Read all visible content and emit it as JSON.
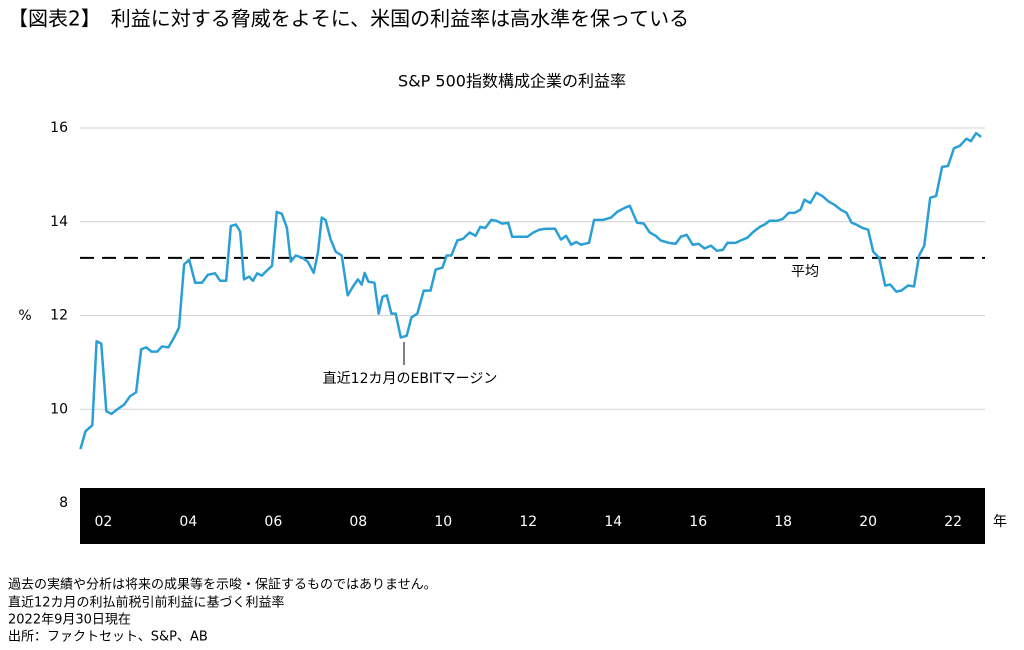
{
  "header": {
    "title": "【図表2】　利益に対する脅威をよそに、米国の利益率は高水準を保っている"
  },
  "chart_data": {
    "type": "line",
    "title": "S&P 500指数構成企業の利益率",
    "ylabel": "%",
    "xlabel": "年",
    "xlim": [
      2001.45,
      2022.75
    ],
    "xticks": [
      {
        "value": 2002,
        "label": "02"
      },
      {
        "value": 2004,
        "label": "04"
      },
      {
        "value": 2006,
        "label": "06"
      },
      {
        "value": 2008,
        "label": "08"
      },
      {
        "value": 2010,
        "label": "10"
      },
      {
        "value": 2012,
        "label": "12"
      },
      {
        "value": 2014,
        "label": "14"
      },
      {
        "value": 2016,
        "label": "16"
      },
      {
        "value": 2018,
        "label": "18"
      },
      {
        "value": 2020,
        "label": "20"
      },
      {
        "value": 2022,
        "label": "22"
      }
    ],
    "ylim": [
      8,
      16
    ],
    "yticks": [
      8,
      10,
      12,
      14,
      16
    ],
    "grid": true,
    "reference_line": {
      "value": 13.23,
      "label": "平均"
    },
    "x": [
      2001.46,
      2001.58,
      2001.74,
      2001.84,
      2001.95,
      2002.07,
      2002.19,
      2002.33,
      2002.49,
      2002.63,
      2002.77,
      2002.89,
      2003.01,
      2003.13,
      2003.27,
      2003.38,
      2003.53,
      2003.64,
      2003.78,
      2003.9,
      2004.02,
      2004.16,
      2004.32,
      2004.46,
      2004.63,
      2004.75,
      2004.89,
      2005.0,
      2005.12,
      2005.22,
      2005.31,
      2005.43,
      2005.52,
      2005.62,
      2005.73,
      2005.85,
      2005.97,
      2006.08,
      2006.2,
      2006.32,
      2006.41,
      2006.53,
      2006.69,
      2006.81,
      2006.95,
      2007.05,
      2007.14,
      2007.23,
      2007.35,
      2007.47,
      2007.61,
      2007.75,
      2007.89,
      2007.99,
      2008.08,
      2008.15,
      2008.24,
      2008.38,
      2008.48,
      2008.57,
      2008.67,
      2008.78,
      2008.88,
      2009.0,
      2009.14,
      2009.25,
      2009.39,
      2009.54,
      2009.7,
      2009.82,
      2009.98,
      2010.08,
      2010.19,
      2010.33,
      2010.47,
      2010.62,
      2010.76,
      2010.87,
      2010.99,
      2011.13,
      2011.25,
      2011.39,
      2011.53,
      2011.62,
      2011.79,
      2011.98,
      2012.12,
      2012.26,
      2012.42,
      2012.63,
      2012.77,
      2012.89,
      2013.01,
      2013.13,
      2013.24,
      2013.43,
      2013.55,
      2013.76,
      2013.95,
      2014.09,
      2014.28,
      2014.39,
      2014.56,
      2014.72,
      2014.86,
      2015.0,
      2015.12,
      2015.31,
      2015.47,
      2015.59,
      2015.73,
      2015.87,
      2016.01,
      2016.15,
      2016.3,
      2016.44,
      2016.58,
      2016.69,
      2016.88,
      2017.0,
      2017.16,
      2017.28,
      2017.45,
      2017.56,
      2017.68,
      2017.85,
      2017.99,
      2018.13,
      2018.27,
      2018.41,
      2018.5,
      2018.64,
      2018.78,
      2018.92,
      2019.07,
      2019.21,
      2019.35,
      2019.49,
      2019.61,
      2019.72,
      2019.86,
      2020.0,
      2020.12,
      2020.26,
      2020.4,
      2020.52,
      2020.66,
      2020.78,
      2020.94,
      2021.08,
      2021.2,
      2021.32,
      2021.46,
      2021.6,
      2021.74,
      2021.88,
      2022.02,
      2022.16,
      2022.31,
      2022.42,
      2022.54,
      2022.66
    ],
    "series": [
      {
        "name": "直近12カ月のEBITマージン",
        "color": "#2a9fd6",
        "values": [
          9.15,
          9.53,
          9.66,
          11.45,
          11.4,
          9.96,
          9.9,
          10.0,
          10.1,
          10.28,
          10.36,
          11.28,
          11.32,
          11.23,
          11.23,
          11.34,
          11.32,
          11.49,
          11.74,
          13.09,
          13.19,
          12.7,
          12.7,
          12.87,
          12.9,
          12.74,
          12.74,
          13.91,
          13.94,
          13.79,
          12.77,
          12.83,
          12.74,
          12.9,
          12.85,
          12.96,
          13.06,
          14.21,
          14.17,
          13.87,
          13.15,
          13.28,
          13.23,
          13.15,
          12.91,
          13.34,
          14.09,
          14.04,
          13.62,
          13.36,
          13.28,
          12.43,
          12.64,
          12.77,
          12.66,
          12.91,
          12.72,
          12.7,
          12.04,
          12.4,
          12.43,
          12.04,
          12.04,
          11.53,
          11.57,
          11.96,
          12.04,
          12.53,
          12.53,
          12.98,
          13.02,
          13.28,
          13.28,
          13.6,
          13.64,
          13.77,
          13.7,
          13.89,
          13.87,
          14.04,
          14.02,
          13.96,
          13.98,
          13.68,
          13.68,
          13.68,
          13.77,
          13.83,
          13.85,
          13.85,
          13.62,
          13.7,
          13.51,
          13.57,
          13.51,
          13.55,
          14.04,
          14.04,
          14.09,
          14.21,
          14.3,
          14.34,
          13.98,
          13.96,
          13.77,
          13.7,
          13.6,
          13.55,
          13.53,
          13.68,
          13.72,
          13.51,
          13.53,
          13.43,
          13.49,
          13.38,
          13.4,
          13.55,
          13.55,
          13.6,
          13.66,
          13.77,
          13.89,
          13.94,
          14.02,
          14.02,
          14.06,
          14.19,
          14.19,
          14.26,
          14.47,
          14.4,
          14.62,
          14.55,
          14.43,
          14.36,
          14.26,
          14.19,
          13.98,
          13.94,
          13.87,
          13.83,
          13.36,
          13.23,
          12.64,
          12.66,
          12.51,
          12.53,
          12.64,
          12.62,
          13.28,
          13.49,
          14.51,
          14.55,
          15.17,
          15.19,
          15.57,
          15.62,
          15.77,
          15.72,
          15.89,
          15.81
        ]
      }
    ]
  },
  "notes": [
    "過去の実績や分析は将来の成果等を示唆・保証するものではありません。",
    "直近12カ月の利払前税引前利益に基づく利益率",
    "2022年9月30日現在",
    "出所：ファクトセット、S&P、AB"
  ]
}
